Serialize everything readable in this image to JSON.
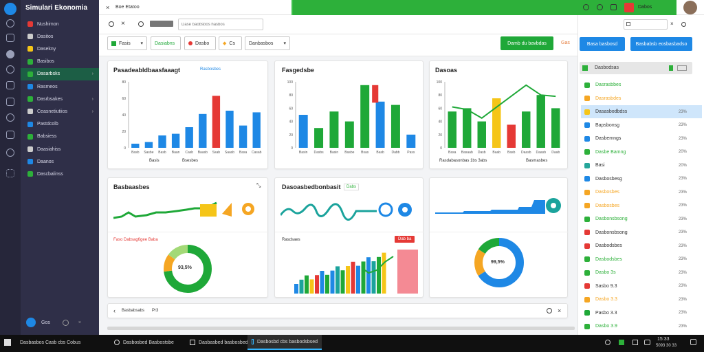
{
  "app": {
    "title": "Simulari Ekonomia",
    "brand_color": "#1e88e5",
    "accent_green": "#2db03a"
  },
  "sidebar": {
    "items": [
      {
        "label": "Nushimon",
        "icon": "grid-icon",
        "color": "#e53935"
      },
      {
        "label": "Dasitos",
        "icon": "chart-icon",
        "color": "#ccc"
      },
      {
        "label": "Dasekny",
        "icon": "shield-icon",
        "color": "#f5c518"
      },
      {
        "label": "Basibos",
        "icon": "bar-chart-icon",
        "color": "#2db03a"
      },
      {
        "label": "Dasarbsks",
        "icon": "leaf-icon",
        "color": "#2db03a"
      },
      {
        "label": "Rasmeos",
        "icon": "table-icon",
        "color": "#1e88e5"
      },
      {
        "label": "Dasrbsakes",
        "icon": "folder-icon",
        "color": "#2db03a"
      },
      {
        "label": "Ceasnetiutiios",
        "icon": "list-icon",
        "color": "#ccc"
      },
      {
        "label": "Pastdcolb",
        "icon": "calendar-icon",
        "color": "#1e88e5"
      },
      {
        "label": "Babsiess",
        "icon": "box-icon",
        "color": "#2db03a"
      },
      {
        "label": "Daasiahiss",
        "icon": "doc-icon",
        "color": "#ccc"
      },
      {
        "label": "Daanos",
        "icon": "globe-icon",
        "color": "#1e88e5"
      },
      {
        "label": "Dascbalinss",
        "icon": "settings-icon",
        "color": "#2db03a"
      }
    ],
    "footer_label": "Gos"
  },
  "topbar": {
    "tab_label": "Boe Etatoo",
    "user_label": "Dabos"
  },
  "toolbar": {
    "address_placeholder": "Dase baobsbos hasbos",
    "filter1": "Fasis",
    "filter2": "Dasiabns",
    "filter3": "Dasbo",
    "filter4": "Cs",
    "filter5": "Danbasbos",
    "green_button": "Damb du bavbdas",
    "link_label": "Gas",
    "blue_button1": "Basa basbosd",
    "blue_button2": "Basbabsb eosbasbadso"
  },
  "cards": {
    "c1_title": "Pasadeabldbaasfaaagt",
    "c1_sub": "Rasbosbes",
    "c1_caption_a": "Basis",
    "c1_caption_b": "Bsesbes",
    "c2_title": "Fasgedsbe",
    "c3_title": "Dasoas",
    "c3_caption_a": "Rasdabasonbas 1bs 3abs",
    "c3_caption_b": "Basmasbes",
    "c4_title": "Basbaasbes",
    "c4_sub": "Faso Dabsag6gee Baba",
    "c4_donut": "93,5%",
    "c5_title": "Dasoasbedbonbasit",
    "c5_badge": "Dabs",
    "c5_sub": "Rasdsaes",
    "c5_tag": "Dab ba",
    "c6_donut": "99,5%",
    "bottom_label": "Basbabsabs",
    "bottom_value": "Pr3"
  },
  "chart_data": [
    {
      "type": "bar",
      "categories": [
        "Basb",
        "Sasbe",
        "Basb",
        "Baan",
        "Casb",
        "Baasb",
        "Ssab",
        "Saasb",
        "Basa",
        "Casab"
      ],
      "values": [
        5,
        7,
        15,
        17,
        25,
        41,
        63,
        45,
        27,
        43
      ],
      "highlight_index": 6,
      "colors": [
        "#1e88e5",
        "#e53935"
      ]
    },
    {
      "type": "bar",
      "categories": [
        "Basin",
        "Dasbs",
        "Basin",
        "Basbe",
        "Bsas",
        "Basb",
        "Dabb",
        "Pass"
      ],
      "values": [
        50,
        30,
        55,
        40,
        95,
        70,
        65,
        20
      ],
      "colors": [
        "#1e88e5",
        "#1fa838",
        "#e53935"
      ]
    },
    {
      "type": "bar",
      "categories": [
        "Basa",
        "Basaab",
        "Dasb",
        "Baab",
        "Basb",
        "Daasb",
        "Daasb",
        "Daab"
      ],
      "values": [
        55,
        60,
        40,
        75,
        35,
        55,
        80,
        60
      ],
      "colors": [
        "#1fa838",
        "#f5c518",
        "#e53935"
      ]
    },
    {
      "type": "donut",
      "values": [
        73,
        12,
        15
      ],
      "colors": [
        "#1fa838",
        "#f5a623",
        "#a3d977"
      ]
    },
    {
      "type": "donut",
      "values": [
        66,
        18,
        16
      ],
      "colors": [
        "#1e88e5",
        "#f5a623",
        "#1fa838"
      ]
    }
  ],
  "right_panel": {
    "header": "Dasbodsas",
    "items": [
      {
        "label": "Dasrasbbes",
        "color": "#2db03a",
        "pct": ""
      },
      {
        "label": "Dasrasbdes",
        "color": "#f5a623",
        "pct": ""
      },
      {
        "label": "Dasasbodbdss",
        "color": "#f5c518",
        "pct": "23%",
        "highlight": true
      },
      {
        "label": "Bapsbonsg",
        "color": "#1e88e5",
        "pct": "23%"
      },
      {
        "label": "Dasbemngs",
        "color": "#1e88e5",
        "pct": "23%"
      },
      {
        "label": "Dasbe Bamng",
        "color": "#2db03a",
        "pct": "20%"
      },
      {
        "label": "Basi",
        "color": "#26a69a",
        "pct": "20%"
      },
      {
        "label": "Dasbosbesg",
        "color": "#1e88e5",
        "pct": "23%"
      },
      {
        "label": "Dasbosbes",
        "color": "#f5a623",
        "pct": "23%"
      },
      {
        "label": "Dasbosbes",
        "color": "#f5a623",
        "pct": "23%"
      },
      {
        "label": "Dasbonsbsong",
        "color": "#2db03a",
        "pct": "23%"
      },
      {
        "label": "Dasbonsbsong",
        "color": "#e53935",
        "pct": "23%"
      },
      {
        "label": "Dasbodsbes",
        "color": "#e53935",
        "pct": "23%"
      },
      {
        "label": "Dasbodsbes",
        "color": "#2db03a",
        "pct": "23%"
      },
      {
        "label": "Dasbo 3s",
        "color": "#2db03a",
        "pct": "23%"
      },
      {
        "label": "Sasbo 9.3",
        "color": "#e53935",
        "pct": "23%"
      },
      {
        "label": "Dasbo 3.3",
        "color": "#f5a623",
        "pct": "23%"
      },
      {
        "label": "Pasbo 3.3",
        "color": "#1fa838",
        "pct": "23%"
      },
      {
        "label": "Dasbo 3.9",
        "color": "#2db03a",
        "pct": "23%"
      }
    ]
  },
  "taskbar": {
    "start_label": "Dasbasbos Casb cbs Cobus",
    "task1": "Dasbosbed Basbostsbe",
    "task2": "Dasbasbed basbosbed",
    "task3": "Dasbosbd cbs basbodsbsed",
    "time": "15:33",
    "date": "5093 30 33"
  }
}
